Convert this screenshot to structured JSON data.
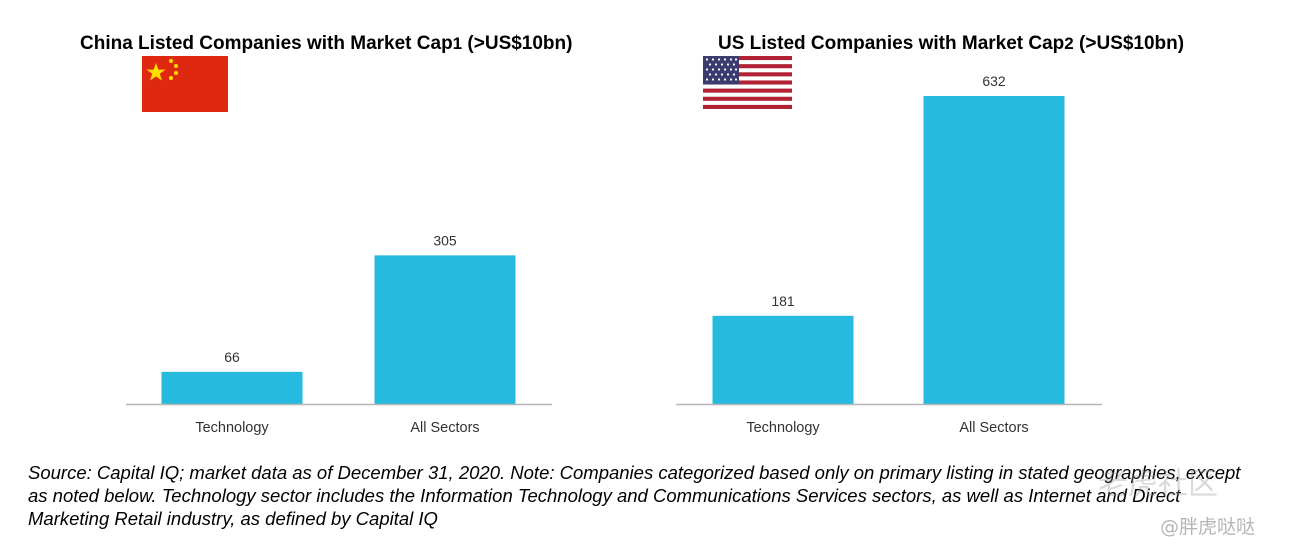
{
  "charts": [
    {
      "title": "China Listed Companies with Market Cap",
      "title_sup": "1",
      "title_suffix": " (>US$10bn)",
      "flag_icon": "china-flag-icon"
    },
    {
      "title": "US Listed Companies with Market Cap",
      "title_sup": "2",
      "title_suffix": " (>US$10bn)",
      "flag_icon": "us-flag-icon"
    }
  ],
  "chart_data": [
    {
      "type": "bar",
      "title": "China Listed Companies with Market Cap1 (>US$10bn)",
      "categories": [
        "Technology",
        "All Sectors"
      ],
      "values": [
        66,
        305
      ],
      "data_labels": [
        "66",
        "305"
      ],
      "xlabel": "",
      "ylabel": "",
      "ylim": [
        0,
        632
      ],
      "grid": false,
      "legend": "none",
      "bar_color": "#26BADF"
    },
    {
      "type": "bar",
      "title": "US Listed Companies with Market Cap2 (>US$10bn)",
      "categories": [
        "Technology",
        "All Sectors"
      ],
      "values": [
        181,
        632
      ],
      "data_labels": [
        "181",
        "632"
      ],
      "xlabel": "",
      "ylabel": "",
      "ylim": [
        0,
        632
      ],
      "grid": false,
      "legend": "none",
      "bar_color": "#26BADF"
    }
  ],
  "colors": {
    "bar": "#26BADF",
    "axis": "#b5b5b5",
    "china_red": "#DE2910",
    "china_star": "#FFDE00",
    "us_red": "#B22234",
    "us_blue": "#3C3B6E"
  },
  "source_note": "Source: Capital IQ; market data as of December 31, 2020. Note: Companies categorized based only on primary listing in stated geographies, except as noted below. Technology sector includes the Information Technology and Communications Services sectors, as well as Internet and Direct Marketing Retail industry, as defined by Capital IQ",
  "watermark": {
    "main": "老虎社区",
    "user": "@胖虎哒哒"
  }
}
